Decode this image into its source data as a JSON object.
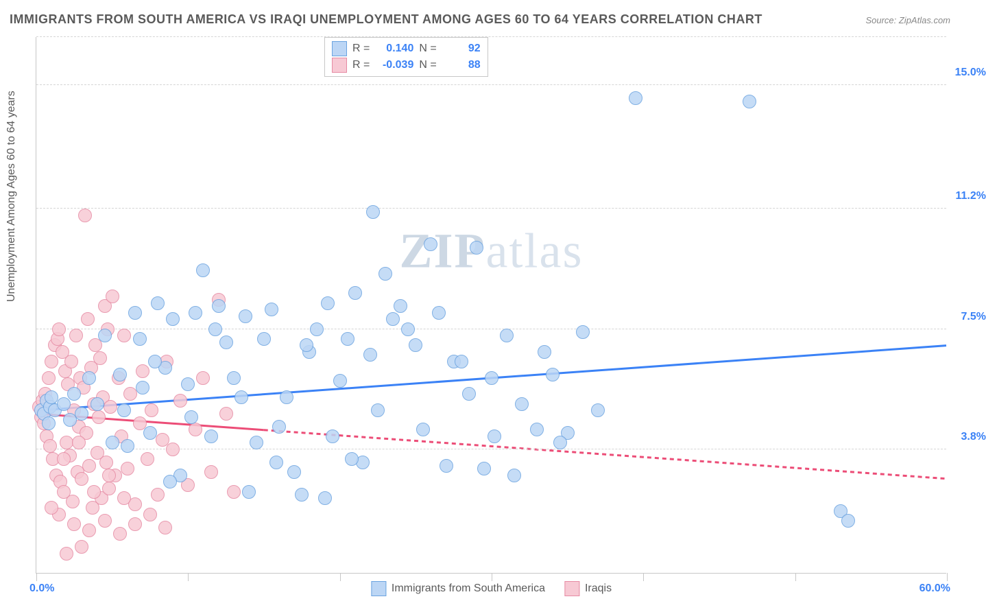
{
  "title": "IMMIGRANTS FROM SOUTH AMERICA VS IRAQI UNEMPLOYMENT AMONG AGES 60 TO 64 YEARS CORRELATION CHART",
  "source": "Source: ZipAtlas.com",
  "ylabel": "Unemployment Among Ages 60 to 64 years",
  "watermark_a": "ZIP",
  "watermark_b": "atlas",
  "chart": {
    "type": "scatter",
    "xlim": [
      0,
      60
    ],
    "ylim": [
      0,
      16.5
    ],
    "xlabel_min": "0.0%",
    "xlabel_max": "60.0%",
    "xlabel_color": "#3b82f6",
    "xtick_positions": [
      0,
      10,
      20,
      30,
      40,
      50,
      60
    ],
    "ygrid": [
      3.8,
      7.5,
      11.2,
      15.0
    ],
    "ygrid_labels": [
      "3.8%",
      "7.5%",
      "11.2%",
      "15.0%"
    ],
    "ytick_color": "#3b82f6",
    "background_color": "#ffffff",
    "grid_color": "#d5d5d5",
    "axis_color": "#c7c7c7",
    "marker_radius": 10,
    "marker_stroke_width": 1.5,
    "trend_width": 3
  },
  "series": [
    {
      "key": "south_america",
      "label": "Immigrants from South America",
      "color_fill": "#bcd6f5",
      "color_stroke": "#6aa3e0",
      "trend_color": "#3b82f6",
      "trend": {
        "x1": 0,
        "y1": 5.0,
        "x2": 60,
        "y2": 7.0,
        "solid_until_x": 60
      },
      "R": "0.140",
      "N": "92",
      "points": [
        [
          0.3,
          5.0
        ],
        [
          0.5,
          4.9
        ],
        [
          0.7,
          5.3
        ],
        [
          0.8,
          4.6
        ],
        [
          0.9,
          5.1
        ],
        [
          1.0,
          5.4
        ],
        [
          39.5,
          14.6
        ],
        [
          47.0,
          14.5
        ],
        [
          22.2,
          11.1
        ],
        [
          23.0,
          9.2
        ],
        [
          24.0,
          8.2
        ],
        [
          25.0,
          7.0
        ],
        [
          25.5,
          4.4
        ],
        [
          26.0,
          10.1
        ],
        [
          27.0,
          3.3
        ],
        [
          27.5,
          6.5
        ],
        [
          28.5,
          5.5
        ],
        [
          29.0,
          10.0
        ],
        [
          30.0,
          6.0
        ],
        [
          30.2,
          4.2
        ],
        [
          31.0,
          7.3
        ],
        [
          31.5,
          3.0
        ],
        [
          33.0,
          4.4
        ],
        [
          8.0,
          8.3
        ],
        [
          8.5,
          6.3
        ],
        [
          9.0,
          7.8
        ],
        [
          9.5,
          3.0
        ],
        [
          10.0,
          5.8
        ],
        [
          10.5,
          8.0
        ],
        [
          11.0,
          9.3
        ],
        [
          11.5,
          4.2
        ],
        [
          12.0,
          8.2
        ],
        [
          12.5,
          7.1
        ],
        [
          13.0,
          6.0
        ],
        [
          13.5,
          5.4
        ],
        [
          14.0,
          2.5
        ],
        [
          14.5,
          4.0
        ],
        [
          15.0,
          7.2
        ],
        [
          15.5,
          8.1
        ],
        [
          16.0,
          4.5
        ],
        [
          16.5,
          5.4
        ],
        [
          17.0,
          3.1
        ],
        [
          17.5,
          2.4
        ],
        [
          18.0,
          6.8
        ],
        [
          18.5,
          7.5
        ],
        [
          19.0,
          2.3
        ],
        [
          19.5,
          4.2
        ],
        [
          20.0,
          5.9
        ],
        [
          20.5,
          7.2
        ],
        [
          21.0,
          8.6
        ],
        [
          21.5,
          3.4
        ],
        [
          22.0,
          6.7
        ],
        [
          23.5,
          7.8
        ],
        [
          4.0,
          5.2
        ],
        [
          4.5,
          7.3
        ],
        [
          5.0,
          4.0
        ],
        [
          5.5,
          6.1
        ],
        [
          6.0,
          3.9
        ],
        [
          6.5,
          8.0
        ],
        [
          7.0,
          5.7
        ],
        [
          7.5,
          4.3
        ],
        [
          34.0,
          6.1
        ],
        [
          35.0,
          4.3
        ],
        [
          36.0,
          7.4
        ],
        [
          37.0,
          5.0
        ],
        [
          1.2,
          5.0
        ],
        [
          1.8,
          5.2
        ],
        [
          2.2,
          4.7
        ],
        [
          2.5,
          5.5
        ],
        [
          3.0,
          4.9
        ],
        [
          3.5,
          6.0
        ],
        [
          28.0,
          6.5
        ],
        [
          32.0,
          5.2
        ],
        [
          33.5,
          6.8
        ],
        [
          34.5,
          4.0
        ],
        [
          53.0,
          1.9
        ],
        [
          53.5,
          1.6
        ],
        [
          29.5,
          3.2
        ],
        [
          17.8,
          7.0
        ],
        [
          19.2,
          8.3
        ],
        [
          20.8,
          3.5
        ],
        [
          22.5,
          5.0
        ],
        [
          24.5,
          7.5
        ],
        [
          26.5,
          8.0
        ],
        [
          13.8,
          7.9
        ],
        [
          15.8,
          3.4
        ],
        [
          11.8,
          7.5
        ],
        [
          10.2,
          4.8
        ],
        [
          8.8,
          2.8
        ],
        [
          7.8,
          6.5
        ],
        [
          6.8,
          7.2
        ],
        [
          5.8,
          5.0
        ]
      ]
    },
    {
      "key": "iraqis",
      "label": "Iraqis",
      "color_fill": "#f7c9d4",
      "color_stroke": "#e68aa3",
      "trend_color": "#ec4d77",
      "trend": {
        "x1": 0,
        "y1": 4.9,
        "x2": 60,
        "y2": 2.9,
        "solid_until_x": 15
      },
      "R": "-0.039",
      "N": "88",
      "points": [
        [
          0.2,
          5.1
        ],
        [
          0.3,
          4.8
        ],
        [
          0.4,
          5.3
        ],
        [
          0.5,
          4.6
        ],
        [
          0.6,
          5.5
        ],
        [
          0.7,
          4.2
        ],
        [
          0.8,
          6.0
        ],
        [
          0.9,
          3.9
        ],
        [
          1.0,
          6.5
        ],
        [
          1.1,
          3.5
        ],
        [
          1.2,
          7.0
        ],
        [
          1.3,
          3.0
        ],
        [
          1.4,
          7.2
        ],
        [
          1.5,
          7.5
        ],
        [
          1.6,
          2.8
        ],
        [
          1.7,
          6.8
        ],
        [
          1.8,
          2.5
        ],
        [
          1.9,
          6.2
        ],
        [
          2.0,
          4.0
        ],
        [
          2.1,
          5.8
        ],
        [
          2.2,
          3.6
        ],
        [
          2.3,
          6.5
        ],
        [
          2.4,
          2.2
        ],
        [
          2.5,
          5.0
        ],
        [
          2.6,
          7.3
        ],
        [
          2.7,
          3.1
        ],
        [
          2.8,
          4.5
        ],
        [
          2.9,
          6.0
        ],
        [
          3.0,
          2.9
        ],
        [
          3.1,
          5.7
        ],
        [
          3.2,
          11.0
        ],
        [
          3.3,
          4.3
        ],
        [
          3.4,
          7.8
        ],
        [
          3.5,
          3.3
        ],
        [
          3.6,
          6.3
        ],
        [
          3.7,
          2.0
        ],
        [
          3.8,
          5.2
        ],
        [
          3.9,
          7.0
        ],
        [
          4.0,
          3.7
        ],
        [
          4.1,
          4.8
        ],
        [
          4.2,
          6.6
        ],
        [
          4.3,
          2.3
        ],
        [
          4.4,
          5.4
        ],
        [
          4.5,
          8.2
        ],
        [
          4.6,
          3.4
        ],
        [
          4.7,
          7.5
        ],
        [
          4.8,
          2.6
        ],
        [
          4.9,
          5.1
        ],
        [
          5.0,
          8.5
        ],
        [
          5.2,
          3.0
        ],
        [
          5.4,
          6.0
        ],
        [
          5.6,
          4.2
        ],
        [
          5.8,
          7.3
        ],
        [
          6.0,
          3.2
        ],
        [
          6.2,
          5.5
        ],
        [
          6.5,
          2.1
        ],
        [
          6.8,
          4.6
        ],
        [
          7.0,
          6.2
        ],
        [
          7.3,
          3.5
        ],
        [
          7.6,
          5.0
        ],
        [
          8.0,
          2.4
        ],
        [
          8.3,
          4.1
        ],
        [
          8.6,
          6.5
        ],
        [
          9.0,
          3.8
        ],
        [
          9.5,
          5.3
        ],
        [
          10.0,
          2.7
        ],
        [
          10.5,
          4.4
        ],
        [
          11.0,
          6.0
        ],
        [
          11.5,
          3.1
        ],
        [
          12.0,
          8.4
        ],
        [
          12.5,
          4.9
        ],
        [
          13.0,
          2.5
        ],
        [
          2.0,
          0.6
        ],
        [
          3.0,
          0.8
        ],
        [
          1.5,
          1.8
        ],
        [
          2.5,
          1.5
        ],
        [
          3.5,
          1.3
        ],
        [
          4.5,
          1.6
        ],
        [
          5.5,
          1.2
        ],
        [
          6.5,
          1.5
        ],
        [
          7.5,
          1.8
        ],
        [
          8.5,
          1.4
        ],
        [
          1.0,
          2.0
        ],
        [
          1.8,
          3.5
        ],
        [
          2.8,
          4.0
        ],
        [
          3.8,
          2.5
        ],
        [
          4.8,
          3.0
        ],
        [
          5.8,
          2.3
        ]
      ]
    }
  ],
  "stats_box": {
    "R_label": "R =",
    "N_label": "N =",
    "value_color": "#3b82f6"
  },
  "legend": {
    "series1_label": "Immigrants from South America",
    "series2_label": "Iraqis"
  }
}
